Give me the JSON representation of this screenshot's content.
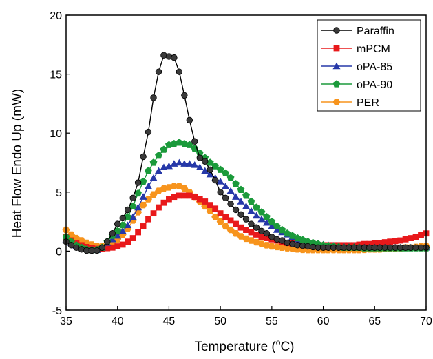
{
  "chart_data": {
    "type": "line",
    "xlabel": "Temperature (",
    "xlabel_sup": "o",
    "xlabel_tail": "C)",
    "ylabel": "Heat Flow Endo Up (mW)",
    "xlim": [
      35,
      70
    ],
    "ylim": [
      -5,
      20
    ],
    "x_ticks": [
      35,
      40,
      45,
      50,
      55,
      60,
      65,
      70
    ],
    "y_ticks": [
      -5,
      0,
      5,
      10,
      15,
      20
    ],
    "grid": false,
    "legend_position": "top-right",
    "series": [
      {
        "name": "Paraffin",
        "color": "#000000",
        "marker_fill": "#3a3a3a",
        "marker": "circle",
        "x": [
          35,
          35.5,
          36,
          36.5,
          37,
          37.5,
          38,
          38.5,
          39,
          39.5,
          40,
          40.5,
          41,
          41.5,
          42,
          42.5,
          43,
          43.5,
          44,
          44.5,
          45,
          45.5,
          46,
          46.5,
          47,
          47.5,
          48,
          48.5,
          49,
          49.5,
          50,
          50.5,
          51,
          51.5,
          52,
          52.5,
          53,
          53.5,
          54,
          54.5,
          55,
          55.5,
          56,
          56.5,
          57,
          57.5,
          58,
          58.5,
          59,
          59.5,
          60,
          60.5,
          61,
          61.5,
          62,
          62.5,
          63,
          63.5,
          64,
          64.5,
          65,
          65.5,
          66,
          66.5,
          67,
          67.5,
          68,
          68.5,
          69,
          69.5,
          70
        ],
        "y": [
          0.8,
          0.5,
          0.3,
          0.15,
          0.05,
          0.05,
          0.05,
          0.3,
          0.8,
          1.5,
          2.3,
          2.8,
          3.5,
          4.5,
          5.8,
          8.0,
          10.1,
          13.0,
          15.2,
          16.6,
          16.5,
          16.4,
          15.2,
          13.2,
          11.1,
          9.3,
          7.9,
          7.6,
          6.9,
          6.0,
          5.0,
          4.5,
          4.0,
          3.5,
          3.1,
          2.7,
          2.3,
          2.0,
          1.7,
          1.5,
          1.2,
          1.0,
          0.9,
          0.7,
          0.6,
          0.5,
          0.45,
          0.4,
          0.35,
          0.3,
          0.3,
          0.3,
          0.3,
          0.3,
          0.3,
          0.3,
          0.3,
          0.3,
          0.3,
          0.3,
          0.3,
          0.3,
          0.3,
          0.3,
          0.3,
          0.3,
          0.3,
          0.3,
          0.3,
          0.3,
          0.3
        ]
      },
      {
        "name": "mPCM",
        "color": "#e8191b",
        "marker_fill": "#e8191b",
        "marker": "square",
        "x": [
          35,
          35.5,
          36,
          36.5,
          37,
          37.5,
          38,
          38.5,
          39,
          39.5,
          40,
          40.5,
          41,
          41.5,
          42,
          42.5,
          43,
          43.5,
          44,
          44.5,
          45,
          45.5,
          46,
          46.5,
          47,
          47.5,
          48,
          48.5,
          49,
          49.5,
          50,
          50.5,
          51,
          51.5,
          52,
          52.5,
          53,
          53.5,
          54,
          54.5,
          55,
          55.5,
          56,
          56.5,
          57,
          57.5,
          58,
          58.5,
          59,
          59.5,
          60,
          60.5,
          61,
          61.5,
          62,
          62.5,
          63,
          63.5,
          64,
          64.5,
          65,
          65.5,
          66,
          66.5,
          67,
          67.5,
          68,
          68.5,
          69,
          69.5,
          70
        ],
        "y": [
          1.2,
          0.9,
          0.7,
          0.5,
          0.35,
          0.25,
          0.2,
          0.2,
          0.25,
          0.3,
          0.4,
          0.55,
          0.8,
          1.1,
          1.6,
          2.1,
          2.7,
          3.2,
          3.7,
          4.1,
          4.4,
          4.6,
          4.7,
          4.7,
          4.7,
          4.6,
          4.4,
          4.2,
          3.9,
          3.6,
          3.2,
          2.9,
          2.6,
          2.3,
          2.0,
          1.8,
          1.6,
          1.4,
          1.2,
          1.1,
          1.0,
          0.9,
          0.8,
          0.7,
          0.65,
          0.6,
          0.55,
          0.5,
          0.5,
          0.5,
          0.5,
          0.5,
          0.5,
          0.5,
          0.5,
          0.5,
          0.5,
          0.55,
          0.6,
          0.6,
          0.65,
          0.7,
          0.75,
          0.8,
          0.85,
          0.9,
          1.0,
          1.1,
          1.2,
          1.35,
          1.5
        ]
      },
      {
        "name": "oPA-85",
        "color": "#2638a8",
        "marker_fill": "#2638a8",
        "marker": "triangle",
        "x": [
          35,
          35.5,
          36,
          36.5,
          37,
          37.5,
          38,
          38.5,
          39,
          39.5,
          40,
          40.5,
          41,
          41.5,
          42,
          42.5,
          43,
          43.5,
          44,
          44.5,
          45,
          45.5,
          46,
          46.5,
          47,
          47.5,
          48,
          48.5,
          49,
          49.5,
          50,
          50.5,
          51,
          51.5,
          52,
          52.5,
          53,
          53.5,
          54,
          54.5,
          55,
          55.5,
          56,
          56.5,
          57,
          57.5,
          58,
          58.5,
          59,
          59.5,
          60,
          60.5,
          61,
          61.5,
          62,
          62.5,
          63,
          63.5,
          64,
          64.5,
          65,
          65.5,
          66,
          66.5,
          67,
          67.5,
          68,
          68.5,
          69,
          69.5,
          70
        ],
        "y": [
          1.0,
          0.7,
          0.45,
          0.3,
          0.15,
          0.1,
          0.1,
          0.3,
          0.7,
          1.0,
          1.3,
          1.7,
          2.2,
          2.9,
          3.7,
          4.6,
          5.5,
          6.2,
          6.8,
          7.1,
          7.2,
          7.4,
          7.5,
          7.4,
          7.4,
          7.3,
          7.1,
          6.8,
          6.5,
          6.2,
          5.9,
          5.5,
          5.1,
          4.6,
          4.2,
          3.8,
          3.4,
          3.0,
          2.7,
          2.4,
          2.1,
          1.8,
          1.6,
          1.4,
          1.2,
          1.0,
          0.9,
          0.8,
          0.7,
          0.6,
          0.55,
          0.5,
          0.45,
          0.4,
          0.4,
          0.35,
          0.35,
          0.35,
          0.3,
          0.3,
          0.3,
          0.3,
          0.3,
          0.3,
          0.3,
          0.3,
          0.3,
          0.3,
          0.3,
          0.3,
          0.3
        ]
      },
      {
        "name": "oPA-90",
        "color": "#1b9a3b",
        "marker_fill": "#1b9a3b",
        "marker": "pentagon",
        "x": [
          35,
          35.5,
          36,
          36.5,
          37,
          37.5,
          38,
          38.5,
          39,
          39.5,
          40,
          40.5,
          41,
          41.5,
          42,
          42.5,
          43,
          43.5,
          44,
          44.5,
          45,
          45.5,
          46,
          46.5,
          47,
          47.5,
          48,
          48.5,
          49,
          49.5,
          50,
          50.5,
          51,
          51.5,
          52,
          52.5,
          53,
          53.5,
          54,
          54.5,
          55,
          55.5,
          56,
          56.5,
          57,
          57.5,
          58,
          58.5,
          59,
          59.5,
          60,
          60.5,
          61,
          61.5,
          62,
          62.5,
          63,
          63.5,
          64,
          64.5,
          65,
          65.5,
          66,
          66.5,
          67,
          67.5,
          68,
          68.5,
          69,
          69.5,
          70
        ],
        "y": [
          1.2,
          0.8,
          0.5,
          0.3,
          0.15,
          0.1,
          0.1,
          0.3,
          0.8,
          1.3,
          1.7,
          2.2,
          2.9,
          3.8,
          4.9,
          5.9,
          6.8,
          7.5,
          8.1,
          8.6,
          9.0,
          9.1,
          9.2,
          9.1,
          9.0,
          8.7,
          8.3,
          7.9,
          7.5,
          7.2,
          6.9,
          6.6,
          6.2,
          5.7,
          5.2,
          4.7,
          4.2,
          3.7,
          3.3,
          2.9,
          2.5,
          2.1,
          1.8,
          1.5,
          1.3,
          1.1,
          0.95,
          0.8,
          0.7,
          0.6,
          0.5,
          0.45,
          0.4,
          0.35,
          0.3,
          0.3,
          0.3,
          0.3,
          0.25,
          0.25,
          0.25,
          0.25,
          0.25,
          0.25,
          0.25,
          0.25,
          0.25,
          0.25,
          0.25,
          0.25,
          0.25
        ]
      },
      {
        "name": "PER",
        "color": "#f7941d",
        "marker_fill": "#f7941d",
        "marker": "hexagon",
        "x": [
          35,
          35.5,
          36,
          36.5,
          37,
          37.5,
          38,
          38.5,
          39,
          39.5,
          40,
          40.5,
          41,
          41.5,
          42,
          42.5,
          43,
          43.5,
          44,
          44.5,
          45,
          45.5,
          46,
          46.5,
          47,
          47.5,
          48,
          48.5,
          49,
          49.5,
          50,
          50.5,
          51,
          51.5,
          52,
          52.5,
          53,
          53.5,
          54,
          54.5,
          55,
          55.5,
          56,
          56.5,
          57,
          57.5,
          58,
          58.5,
          59,
          59.5,
          60,
          60.5,
          61,
          61.5,
          62,
          62.5,
          63,
          63.5,
          64,
          64.5,
          65,
          65.5,
          66,
          66.5,
          67,
          67.5,
          68,
          68.5,
          69,
          69.5,
          70
        ],
        "y": [
          1.8,
          1.4,
          1.1,
          0.9,
          0.7,
          0.55,
          0.45,
          0.4,
          0.5,
          0.7,
          1.0,
          1.4,
          1.9,
          2.6,
          3.3,
          3.9,
          4.4,
          4.8,
          5.1,
          5.3,
          5.4,
          5.5,
          5.5,
          5.3,
          5.0,
          4.6,
          4.2,
          3.8,
          3.4,
          2.9,
          2.5,
          2.1,
          1.8,
          1.5,
          1.25,
          1.05,
          0.9,
          0.75,
          0.6,
          0.5,
          0.4,
          0.35,
          0.3,
          0.25,
          0.2,
          0.15,
          0.12,
          0.1,
          0.1,
          0.1,
          0.1,
          0.1,
          0.1,
          0.1,
          0.1,
          0.1,
          0.1,
          0.1,
          0.12,
          0.15,
          0.15,
          0.15,
          0.2,
          0.2,
          0.2,
          0.25,
          0.3,
          0.3,
          0.35,
          0.4,
          0.45
        ]
      }
    ]
  }
}
